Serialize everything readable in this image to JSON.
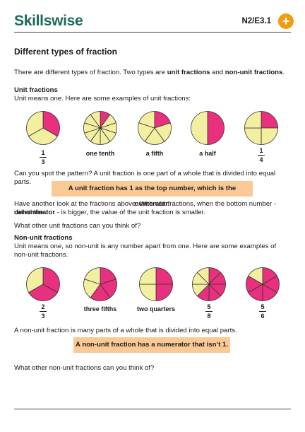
{
  "header": {
    "logo": "Skillswise",
    "code": "N2/E3.1"
  },
  "title": "Different types of fraction",
  "intro": {
    "text": "There are different types of fraction. Two types are ",
    "b1": "unit fractions",
    "mid": " and ",
    "b2": "non-unit fractions",
    "end": "."
  },
  "unit": {
    "heading": "Unit fractions",
    "desc": "Unit means one. Here are some examples of unit fractions:",
    "labels": {
      "f1": {
        "num": "1",
        "den": "3"
      },
      "tenth": "one tenth",
      "fifth": "a fifth",
      "half": "a half",
      "f4": {
        "num": "1",
        "den": "4"
      }
    },
    "pattern": "Can you spot the pattern? A unit fraction is one part of a whole that is divided into equal parts.",
    "box": "A unit fraction has 1 as the top number, which is the numerator.",
    "another1": "Have another look at the fractions above. With unit fractions, when the bottom number - called the",
    "another2_b": "denominator",
    "another2_rest": " - is bigger, the value of the unit fraction is smaller.",
    "question": "What other unit fractions can you think of?"
  },
  "nonunit": {
    "heading": "Non-unit fractions",
    "desc": "Unit means one, so non-unit is any number apart from one. Here are some examples of non-unit fractions.",
    "labels": {
      "f1": {
        "num": "2",
        "den": "3"
      },
      "three": "three fifths",
      "two": "two quarters",
      "f4": {
        "num": "5",
        "den": "8"
      },
      "f5": {
        "num": "5",
        "den": "6"
      }
    },
    "many": "A non-unit fraction is many parts of a whole that is divided into equal parts.",
    "box": "A non-unit fraction has a numerator that isn’t 1.",
    "question": "What other non-unit fractions can you think of?"
  },
  "colors": {
    "shaded": "#e8307f",
    "unshaded": "#f3efa1",
    "box": "#fbc996",
    "brand": "#1c6b5a",
    "accent": "#f39c12"
  },
  "icons": {
    "plus": "plus-icon"
  },
  "pies": [
    {
      "parts": 3,
      "shaded": 1
    },
    {
      "parts": 10,
      "shaded": 1
    },
    {
      "parts": 5,
      "shaded": 1
    },
    {
      "parts": 2,
      "shaded": 1
    },
    {
      "parts": 4,
      "shaded": 1
    },
    {
      "parts": 3,
      "shaded": 2
    },
    {
      "parts": 5,
      "shaded": 3
    },
    {
      "parts": 4,
      "shaded": 2
    },
    {
      "parts": 8,
      "shaded": 5
    },
    {
      "parts": 6,
      "shaded": 5
    }
  ]
}
